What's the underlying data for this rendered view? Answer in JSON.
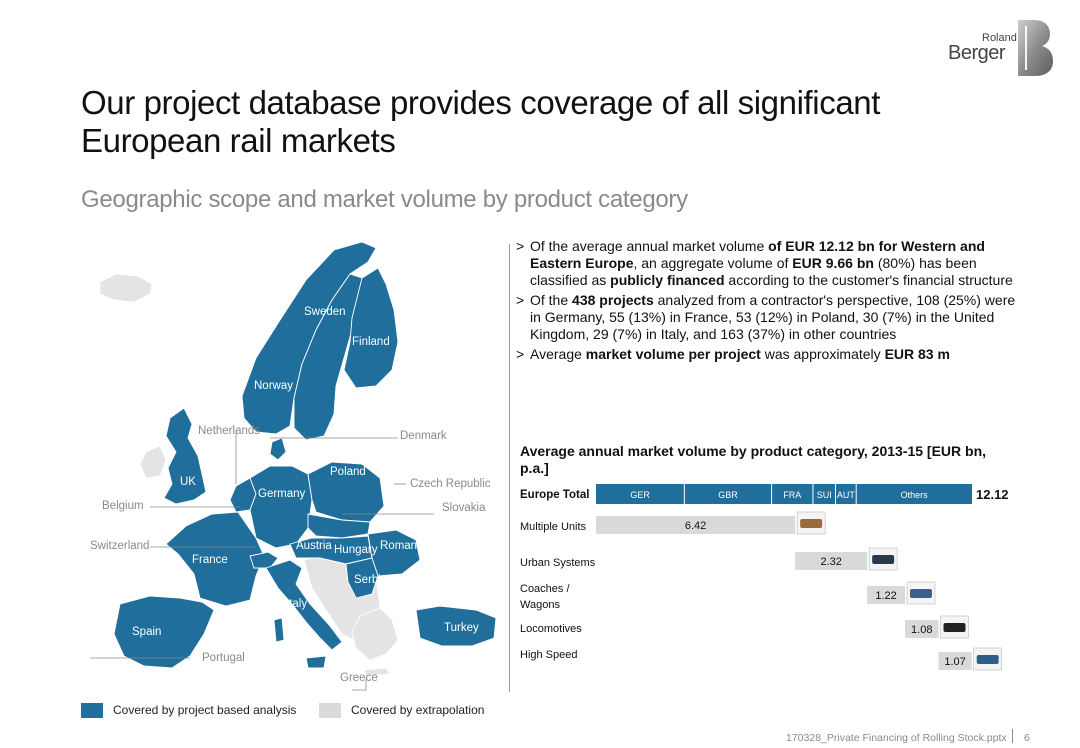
{
  "brand": {
    "name_top": "Roland",
    "name_bottom": "Berger"
  },
  "title": "Our project database provides coverage of all significant European rail markets",
  "subtitle": "Geographic scope and market volume by product category",
  "colors": {
    "covered": "#1f6e9c",
    "extrapolated": "#d9d9d9",
    "other_land": "#e4e4e4",
    "bar_gray": "#d9d9d9",
    "total_bar": "#1f6e9c"
  },
  "map": {
    "countries": {
      "sweden": "Sweden",
      "finland": "Finland",
      "norway": "Norway",
      "netherlands": "Netherlands",
      "denmark": "Denmark",
      "uk": "UK",
      "poland": "Poland",
      "germany": "Germany",
      "czech_republic": "Czech Republic",
      "belgium": "Belgium",
      "slovakia": "Slovakia",
      "switzerland": "Switzerland",
      "austria": "Austria",
      "hungary": "Hungary",
      "romania": "Romania",
      "france": "France",
      "serbia": "Serbia",
      "italy": "Italy",
      "spain": "Spain",
      "turkey": "Turkey",
      "portugal": "Portugal",
      "greece": "Greece"
    }
  },
  "legend": {
    "covered": "Covered by project based analysis",
    "extrapolated": "Covered by extrapolation"
  },
  "bullets": {
    "b1": {
      "t1": "Of the average annual market volume ",
      "b1": "of EUR 12.12 bn for Western and Eastern Europe",
      "t2": ", an aggregate volume of ",
      "b2": "EUR 9.66 bn",
      "t3": " (80%) has been classified as ",
      "b3": "publicly financed",
      "t4": " according to the customer's financial structure"
    },
    "b2": {
      "t1": "Of the ",
      "b1": "438 projects",
      "t2": " analyzed from a contractor's perspective, 108 (25%) were in Germany, 55 (13%) in France, 53 (12%) in Poland, 30 (7%) in the United Kingdom, 29 (7%) in Italy, and 163 (37%) in other countries"
    },
    "b3": {
      "t1": "Average ",
      "b1": "market volume per project",
      "t2": " was approximately ",
      "b2": "EUR 83 m"
    },
    "marker": ">"
  },
  "chart_title": "Average annual market volume by product category, 2013-15 [EUR bn, p.a.]",
  "chart_data": {
    "type": "bar",
    "title": "Average annual market volume by product category, 2013-15 [EUR bn, p.a.]",
    "total": {
      "label": "Europe Total",
      "value": 12.12,
      "value_label": "12.12",
      "segments": [
        "GER",
        "GBR",
        "FRA",
        "SUI",
        "AUT",
        "Others"
      ]
    },
    "categories": [
      "Multiple Units",
      "Urban Systems",
      "Coaches / Wagons",
      "Locomotives",
      "High Speed"
    ],
    "values": [
      6.42,
      2.32,
      1.22,
      1.08,
      1.07
    ],
    "value_labels": [
      "6.42",
      "2.32",
      "1.22",
      "1.08",
      "1.07"
    ],
    "icons": [
      "multiple-unit-train-icon",
      "tram-icon",
      "wagon-icon",
      "locomotive-icon",
      "high-speed-train-icon"
    ],
    "orientation": "horizontal waterfall"
  },
  "footer": {
    "file": "170328_Private Financing of Rolling Stock.pptx",
    "page": "6"
  }
}
